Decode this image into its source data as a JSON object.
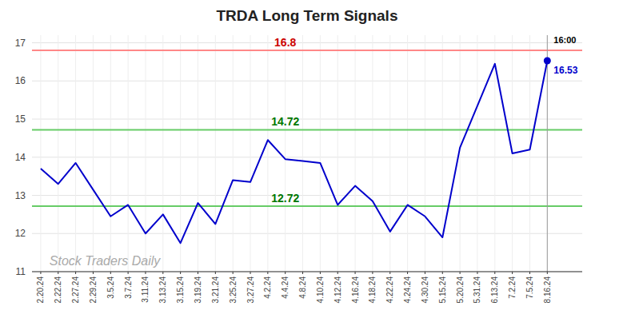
{
  "chart_data": {
    "type": "line",
    "title": "TRDA Long Term Signals",
    "categories": [
      "2.20.24",
      "2.22.24",
      "2.27.24",
      "2.29.24",
      "3.5.24",
      "3.7.24",
      "3.11.24",
      "3.13.24",
      "3.15.24",
      "3.19.24",
      "3.21.24",
      "3.25.24",
      "3.27.24",
      "4.2.24",
      "4.4.24",
      "4.8.24",
      "4.10.24",
      "4.12.24",
      "4.16.24",
      "4.18.24",
      "4.22.24",
      "4.24.24",
      "4.30.24",
      "5.15.24",
      "5.20.24",
      "5.31.24",
      "6.13.24",
      "7.2.24",
      "7.5.24",
      "8.16.24"
    ],
    "values": [
      13.7,
      13.3,
      13.85,
      13.15,
      12.45,
      12.75,
      12.0,
      12.5,
      11.75,
      12.8,
      12.25,
      13.4,
      13.35,
      14.45,
      13.95,
      13.9,
      13.85,
      12.75,
      13.25,
      12.85,
      12.05,
      12.75,
      12.45,
      11.9,
      14.25,
      15.35,
      16.45,
      14.1,
      14.2,
      16.53
    ],
    "color": "#0000cc",
    "reference_lines": [
      {
        "value": 16.8,
        "label": "16.8",
        "color": "#ff8888",
        "label_color": "#cc0000"
      },
      {
        "value": 14.72,
        "label": "14.72",
        "color": "#66cc66",
        "label_color": "#007700"
      },
      {
        "value": 12.72,
        "label": "12.72",
        "color": "#66cc66",
        "label_color": "#007700"
      }
    ],
    "last_time_label": "16:00",
    "last_value_label": "16.53",
    "watermark": "Stock Traders Daily",
    "ylim": [
      11,
      17.2
    ],
    "yticks": [
      11,
      12,
      13,
      14,
      15,
      16,
      17
    ],
    "grid": true
  }
}
